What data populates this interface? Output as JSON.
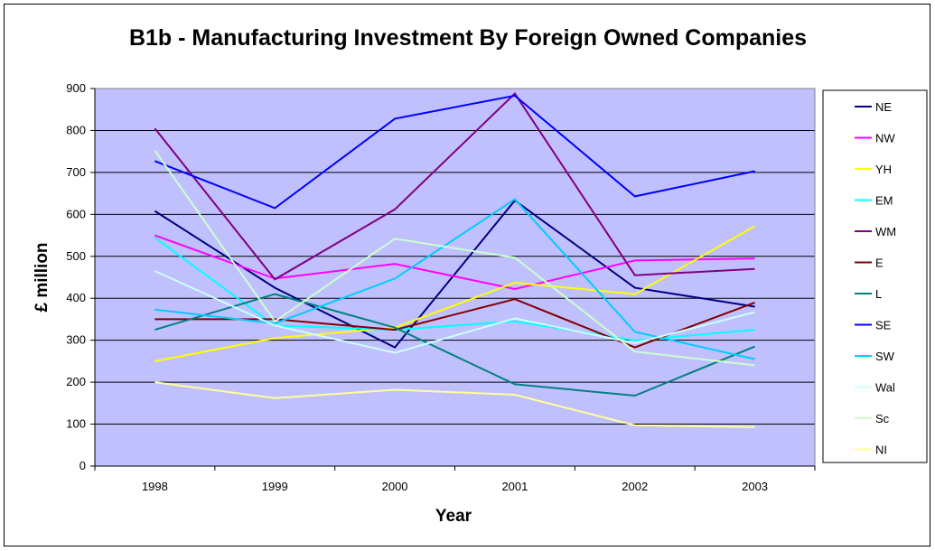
{
  "chart_data": {
    "type": "line",
    "title": "B1b - Manufacturing Investment By Foreign Owned Companies",
    "xlabel": "Year",
    "ylabel": "£ million",
    "categories": [
      "1998",
      "1999",
      "2000",
      "2001",
      "2002",
      "2003"
    ],
    "ylim": [
      0,
      900
    ],
    "yticks": [
      "0",
      "100",
      "200",
      "300",
      "400",
      "500",
      "600",
      "700",
      "800",
      "900"
    ],
    "grid": true,
    "legend_position": "right",
    "plot_background": "#c0c0ff",
    "series": [
      {
        "name": "NE",
        "color": "#000080",
        "values": [
          608,
          425,
          283,
          633,
          425,
          380
        ]
      },
      {
        "name": "NW",
        "color": "#ff00ff",
        "values": [
          550,
          447,
          482,
          422,
          490,
          495
        ]
      },
      {
        "name": "YH",
        "color": "#ffff00",
        "values": [
          250,
          305,
          330,
          437,
          410,
          572
        ]
      },
      {
        "name": "EM",
        "color": "#00ffff",
        "values": [
          545,
          335,
          325,
          345,
          300,
          325
        ]
      },
      {
        "name": "WM",
        "color": "#800080",
        "values": [
          805,
          445,
          612,
          888,
          455,
          470
        ]
      },
      {
        "name": "E",
        "color": "#800000",
        "values": [
          350,
          350,
          325,
          398,
          283,
          390
        ]
      },
      {
        "name": "L",
        "color": "#008080",
        "values": [
          325,
          410,
          330,
          195,
          168,
          285
        ]
      },
      {
        "name": "SE",
        "color": "#0000ff",
        "values": [
          727,
          615,
          828,
          883,
          643,
          703
        ]
      },
      {
        "name": "SW",
        "color": "#00ccff",
        "values": [
          373,
          340,
          447,
          636,
          320,
          255
        ]
      },
      {
        "name": "Wal",
        "color": "#ccffff",
        "values": [
          465,
          335,
          270,
          352,
          293,
          367
        ]
      },
      {
        "name": "Sc",
        "color": "#ccffcc",
        "values": [
          752,
          345,
          542,
          497,
          273,
          240
        ]
      },
      {
        "name": "NI",
        "color": "#ffff99",
        "values": [
          200,
          162,
          182,
          170,
          97,
          93
        ]
      }
    ]
  }
}
